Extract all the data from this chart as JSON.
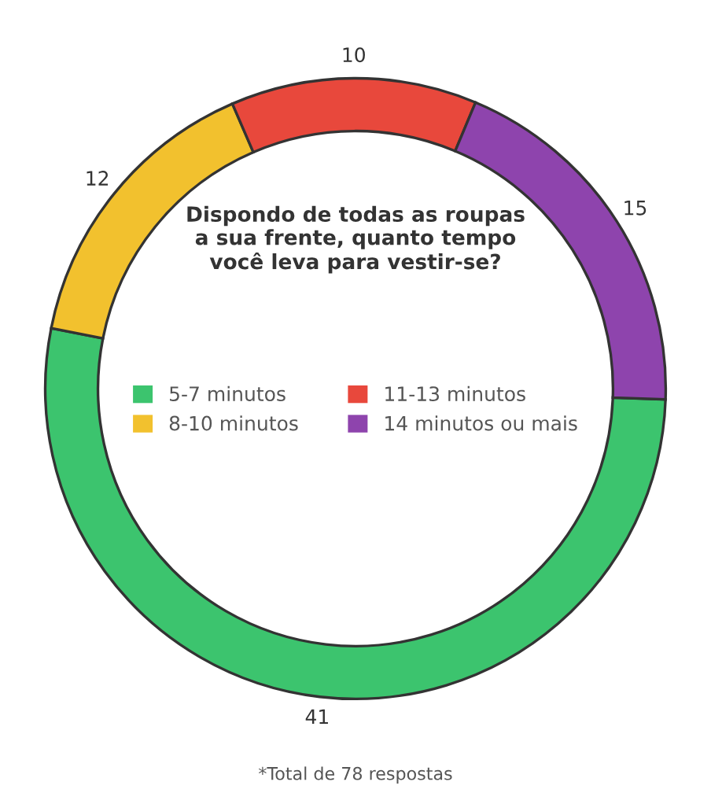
{
  "chart_data": {
    "type": "donut",
    "title": "Dispondo de todas as roupas a sua frente, quanto tempo você leva para vestir-se?",
    "categories": [
      "5-7 minutos",
      "8-10 minutos",
      "11-13 minutos",
      "14 minutos ou mais"
    ],
    "values": [
      41,
      12,
      10,
      15
    ],
    "colors": [
      "#3cc46e",
      "#f2c12e",
      "#e8483c",
      "#8e44ad"
    ],
    "data_labels": true,
    "legend": "center",
    "annotations": [
      "*Total de 78 respostas"
    ]
  }
}
